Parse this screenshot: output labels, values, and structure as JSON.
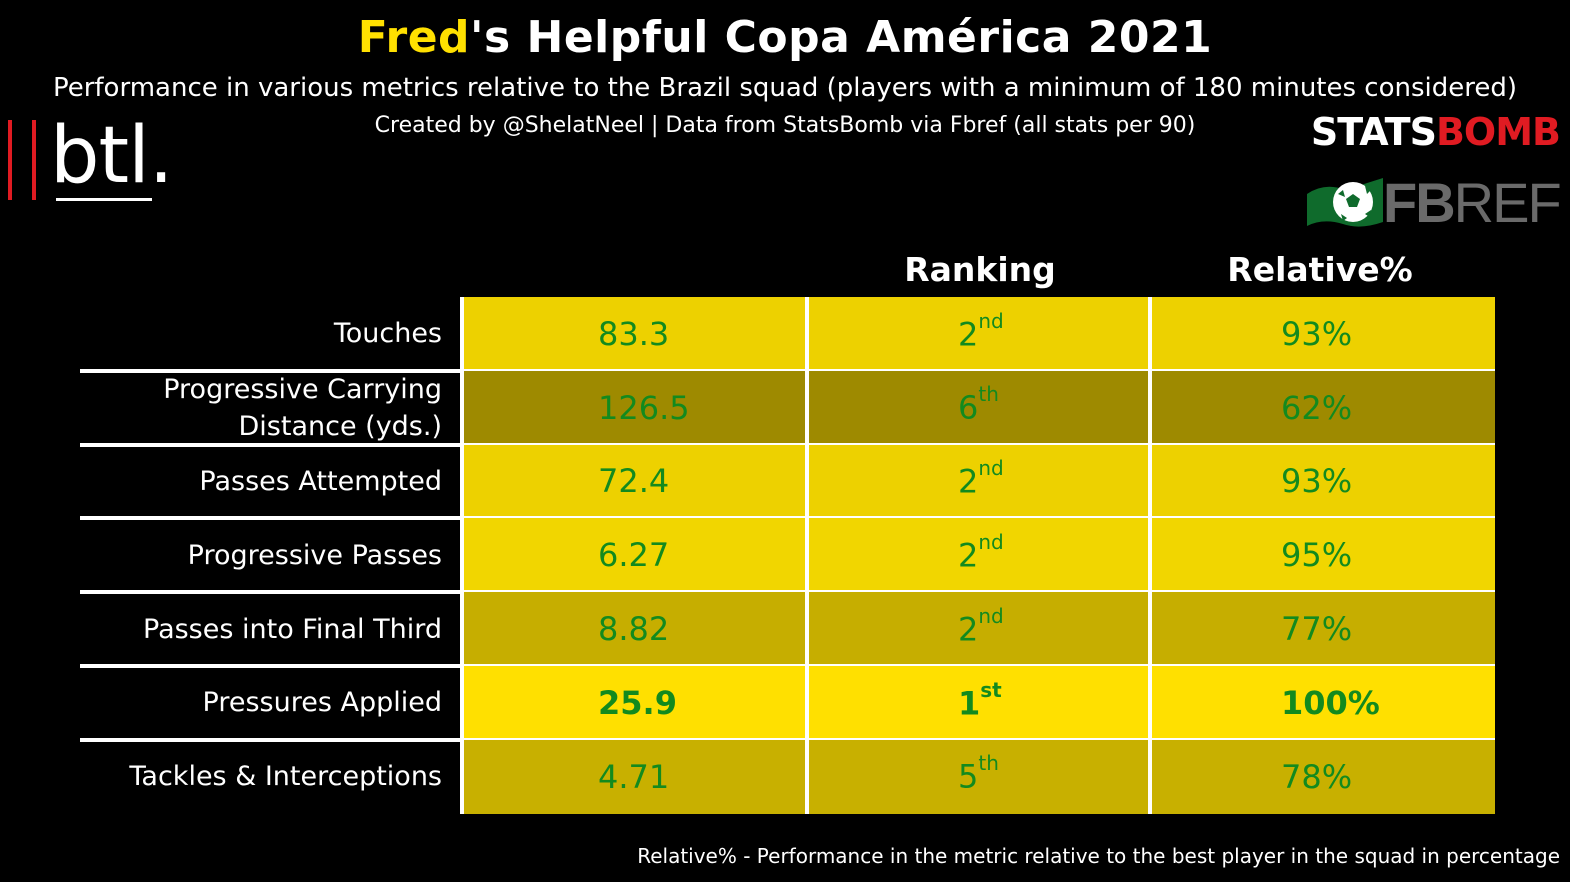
{
  "chart_data": {
    "type": "table",
    "title": {
      "highlight": "Fred",
      "rest": "'s Helpful Copa América 2021"
    },
    "subtitle": "Performance in various metrics relative to the Brazil squad (players with a minimum of 180 minutes considered)",
    "credit": "Created by @ShelatNeel | Data from StatsBomb via Fbref (all stats per 90)",
    "columns": [
      "",
      "Ranking",
      "Relative%"
    ],
    "rows": [
      {
        "metric": "Touches",
        "value": "83.3",
        "rank_num": "2",
        "rank_suffix": "nd",
        "relative": "93%",
        "relative_value": 93,
        "color": "#EDD100"
      },
      {
        "metric": "Progressive Carrying Distance (yds.)",
        "metric_line1": "Progressive Carrying",
        "metric_line2": "Distance (yds.)",
        "value": "126.5",
        "rank_num": "6",
        "rank_suffix": "th",
        "relative": "62%",
        "relative_value": 62,
        "color": "#9E8A00"
      },
      {
        "metric": "Passes Attempted",
        "value": "72.4",
        "rank_num": "2",
        "rank_suffix": "nd",
        "relative": "93%",
        "relative_value": 93,
        "color": "#EDD100"
      },
      {
        "metric": "Progressive Passes",
        "value": "6.27",
        "rank_num": "2",
        "rank_suffix": "nd",
        "relative": "95%",
        "relative_value": 95,
        "color": "#F1D600"
      },
      {
        "metric": "Passes into Final Third",
        "value": "8.82",
        "rank_num": "2",
        "rank_suffix": "nd",
        "relative": "77%",
        "relative_value": 77,
        "color": "#C6AE00"
      },
      {
        "metric": "Pressures Applied",
        "value": "25.9",
        "rank_num": "1",
        "rank_suffix": "st",
        "relative": "100%",
        "relative_value": 100,
        "color": "#FFE000",
        "bold": true
      },
      {
        "metric": "Tackles & Interceptions",
        "value": "4.71",
        "rank_num": "5",
        "rank_suffix": "th",
        "relative": "78%",
        "relative_value": 78,
        "color": "#C8B000"
      }
    ],
    "footnote": "Relative% - Performance in the metric relative to the best player in the squad in percentage",
    "value_text_color": "#138A1E",
    "highlight_color": "#FFE000"
  },
  "logos": {
    "btl": "btl",
    "btl_dot": ".",
    "statsbomb_white": "STATS",
    "statsbomb_red": "BOMB",
    "fbref_bold": "FB",
    "fbref_light": "REF"
  }
}
